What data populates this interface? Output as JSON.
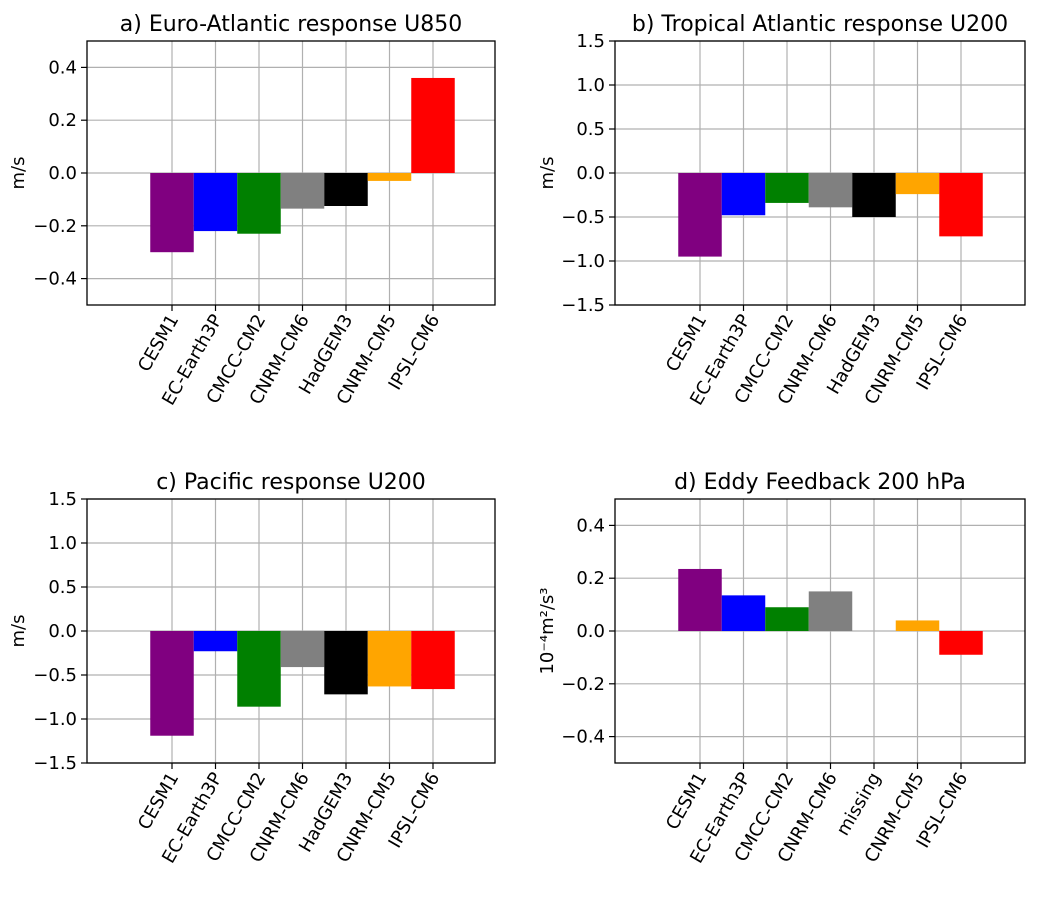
{
  "chart_data": [
    {
      "type": "bar",
      "title": "a) Euro-Atlantic response U850",
      "xlabel": "",
      "ylabel": "m/s",
      "ylim": [
        -0.5,
        0.5
      ],
      "yticks": [
        -0.4,
        -0.2,
        0.0,
        0.2,
        0.4
      ],
      "ytick_labels": [
        "−0.4",
        "−0.2",
        "0.0",
        "0.2",
        "0.4"
      ],
      "grid": true,
      "categories": [
        "CESM1",
        "EC-Earth3P",
        "CMCC-CM2",
        "CNRM-CM6",
        "HadGEM3",
        "CNRM-CM5",
        "IPSL-CM6"
      ],
      "values": [
        -0.3,
        -0.22,
        -0.23,
        -0.135,
        -0.125,
        -0.03,
        0.36
      ],
      "colors": [
        "#800080",
        "#0000ff",
        "#008000",
        "#808080",
        "#000000",
        "#ffa500",
        "#ff0000"
      ]
    },
    {
      "type": "bar",
      "title": "b) Tropical Atlantic response U200",
      "xlabel": "",
      "ylabel": "m/s",
      "ylim": [
        -1.5,
        1.5
      ],
      "yticks": [
        -1.5,
        -1.0,
        -0.5,
        0.0,
        0.5,
        1.0,
        1.5
      ],
      "ytick_labels": [
        "−1.5",
        "−1.0",
        "−0.5",
        "0.0",
        "0.5",
        "1.0",
        "1.5"
      ],
      "grid": true,
      "categories": [
        "CESM1",
        "EC-Earth3P",
        "CMCC-CM2",
        "CNRM-CM6",
        "HadGEM3",
        "CNRM-CM5",
        "IPSL-CM6"
      ],
      "values": [
        -0.95,
        -0.48,
        -0.34,
        -0.39,
        -0.5,
        -0.24,
        -0.72
      ],
      "colors": [
        "#800080",
        "#0000ff",
        "#008000",
        "#808080",
        "#000000",
        "#ffa500",
        "#ff0000"
      ]
    },
    {
      "type": "bar",
      "title": "c) Pacific response U200",
      "xlabel": "",
      "ylabel": "m/s",
      "ylim": [
        -1.5,
        1.5
      ],
      "yticks": [
        -1.5,
        -1.0,
        -0.5,
        0.0,
        0.5,
        1.0,
        1.5
      ],
      "ytick_labels": [
        "−1.5",
        "−1.0",
        "−0.5",
        "0.0",
        "0.5",
        "1.0",
        "1.5"
      ],
      "grid": true,
      "categories": [
        "CESM1",
        "EC-Earth3P",
        "CMCC-CM2",
        "CNRM-CM6",
        "HadGEM3",
        "CNRM-CM5",
        "IPSL-CM6"
      ],
      "values": [
        -1.19,
        -0.23,
        -0.86,
        -0.41,
        -0.72,
        -0.63,
        -0.66
      ],
      "colors": [
        "#800080",
        "#0000ff",
        "#008000",
        "#808080",
        "#000000",
        "#ffa500",
        "#ff0000"
      ]
    },
    {
      "type": "bar",
      "title": "d) Eddy Feedback 200 hPa",
      "xlabel": "",
      "ylabel": "10⁻⁴m²/s³",
      "ylim": [
        -0.5,
        0.5
      ],
      "yticks": [
        -0.4,
        -0.2,
        0.0,
        0.2,
        0.4
      ],
      "ytick_labels": [
        "−0.4",
        "−0.2",
        "0.0",
        "0.2",
        "0.4"
      ],
      "grid": true,
      "categories": [
        "CESM1",
        "EC-Earth3P",
        "CMCC-CM2",
        "CNRM-CM6",
        "missing",
        "CNRM-CM5",
        "IPSL-CM6"
      ],
      "values": [
        0.235,
        0.135,
        0.09,
        0.15,
        null,
        0.04,
        -0.09
      ],
      "colors": [
        "#800080",
        "#0000ff",
        "#008000",
        "#808080",
        "#000000",
        "#ffa500",
        "#ff0000"
      ]
    }
  ]
}
